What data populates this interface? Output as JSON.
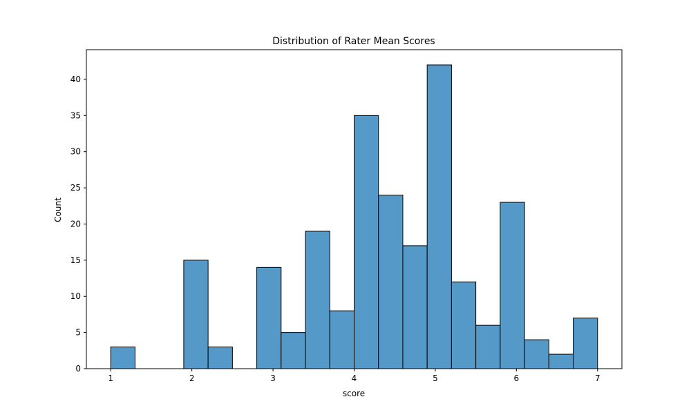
{
  "chart_data": {
    "type": "bar",
    "title": "Distribution of Rater Mean Scores",
    "xlabel": "score",
    "ylabel": "Count",
    "xlim": [
      0.7,
      7.3
    ],
    "ylim": [
      0,
      44.1
    ],
    "bin_width": 0.3,
    "bins": [
      {
        "x0": 1.0,
        "x1": 1.3,
        "count": 3
      },
      {
        "x0": 1.3,
        "x1": 1.6,
        "count": 0
      },
      {
        "x0": 1.6,
        "x1": 1.9,
        "count": 0
      },
      {
        "x0": 1.9,
        "x1": 2.2,
        "count": 15
      },
      {
        "x0": 2.2,
        "x1": 2.5,
        "count": 3
      },
      {
        "x0": 2.5,
        "x1": 2.8,
        "count": 0
      },
      {
        "x0": 2.8,
        "x1": 3.1,
        "count": 14
      },
      {
        "x0": 3.1,
        "x1": 3.4,
        "count": 5
      },
      {
        "x0": 3.4,
        "x1": 3.7,
        "count": 19
      },
      {
        "x0": 3.7,
        "x1": 4.0,
        "count": 8
      },
      {
        "x0": 4.0,
        "x1": 4.3,
        "count": 35
      },
      {
        "x0": 4.3,
        "x1": 4.6,
        "count": 24
      },
      {
        "x0": 4.6,
        "x1": 4.9,
        "count": 17
      },
      {
        "x0": 4.9,
        "x1": 5.2,
        "count": 42
      },
      {
        "x0": 5.2,
        "x1": 5.5,
        "count": 12
      },
      {
        "x0": 5.5,
        "x1": 5.8,
        "count": 6
      },
      {
        "x0": 5.8,
        "x1": 6.1,
        "count": 23
      },
      {
        "x0": 6.1,
        "x1": 6.4,
        "count": 4
      },
      {
        "x0": 6.4,
        "x1": 6.7,
        "count": 2
      },
      {
        "x0": 6.7,
        "x1": 7.0,
        "count": 7
      }
    ],
    "xticks": [
      1,
      2,
      3,
      4,
      5,
      6,
      7
    ],
    "yticks": [
      0,
      5,
      10,
      15,
      20,
      25,
      30,
      35,
      40
    ],
    "grid": false,
    "legend": "none",
    "colors": {
      "bar_fill": "#5599c8",
      "bar_edge": "#000000",
      "axis": "#000000"
    }
  }
}
